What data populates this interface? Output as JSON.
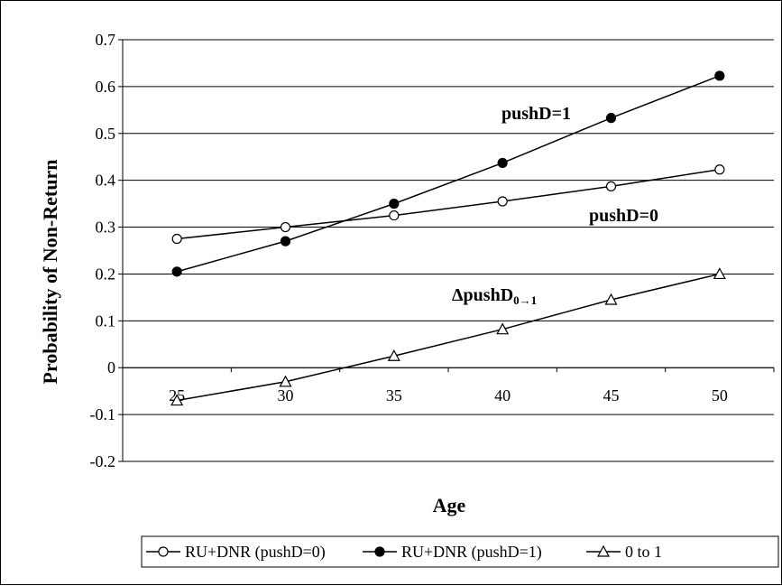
{
  "chart_data": {
    "type": "line",
    "xlabel": "Age",
    "ylabel": "Probability of Non-Return",
    "x": [
      25,
      30,
      35,
      40,
      45,
      50
    ],
    "xticks": [
      "25",
      "30",
      "35",
      "40",
      "45",
      "50"
    ],
    "ylim": [
      -0.2,
      0.7
    ],
    "yticks": [
      "0.7",
      "0.6",
      "0.5",
      "0.4",
      "0.3",
      "0.2",
      "0.1",
      "0",
      "-0.1",
      "-0.2"
    ],
    "grid": "horizontal",
    "legend_position": "bottom",
    "series": [
      {
        "name": "RU+DNR (pushD=0)",
        "marker": "open-circle",
        "values": [
          0.275,
          0.3,
          0.325,
          0.355,
          0.387,
          0.423
        ]
      },
      {
        "name": "RU+DNR (pushD=1)",
        "marker": "filled-circle",
        "values": [
          0.205,
          0.27,
          0.35,
          0.437,
          0.533,
          0.623
        ]
      },
      {
        "name": "0 to 1",
        "marker": "open-triangle",
        "values": [
          -0.07,
          -0.03,
          0.025,
          0.082,
          0.145,
          0.2
        ]
      }
    ],
    "annotations": {
      "pushD1": "pushD=1",
      "pushD0": "pushD=0",
      "delta_main": "ΔpushD",
      "delta_sub": "0→1"
    }
  }
}
